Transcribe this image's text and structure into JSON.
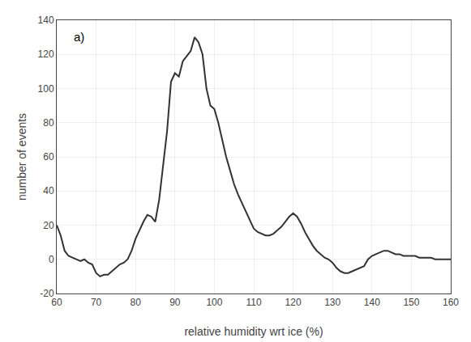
{
  "chart_data": {
    "type": "line",
    "x": [
      60,
      61,
      62,
      63,
      64,
      65,
      66,
      67,
      68,
      69,
      70,
      71,
      72,
      73,
      74,
      75,
      76,
      77,
      78,
      79,
      80,
      81,
      82,
      83,
      84,
      85,
      86,
      87,
      88,
      89,
      90,
      91,
      92,
      93,
      94,
      95,
      96,
      97,
      98,
      99,
      100,
      101,
      102,
      103,
      104,
      105,
      106,
      107,
      108,
      109,
      110,
      111,
      112,
      113,
      114,
      115,
      116,
      117,
      118,
      119,
      120,
      121,
      122,
      123,
      124,
      125,
      126,
      127,
      128,
      129,
      130,
      131,
      132,
      133,
      134,
      135,
      136,
      137,
      138,
      139,
      140,
      141,
      142,
      143,
      144,
      145,
      146,
      147,
      148,
      149,
      150,
      151,
      152,
      153,
      154,
      155,
      156,
      157,
      158,
      159,
      160
    ],
    "values": [
      20,
      14,
      5,
      2,
      1,
      0,
      -1,
      0,
      -2,
      -3,
      -8,
      -10,
      -9,
      -9,
      -7,
      -5,
      -3,
      -2,
      0,
      5,
      12,
      17,
      22,
      26,
      25,
      22,
      35,
      55,
      75,
      104,
      109,
      107,
      116,
      119,
      122,
      130,
      127,
      120,
      100,
      90,
      88,
      80,
      70,
      60,
      52,
      44,
      38,
      33,
      28,
      23,
      18,
      16,
      15,
      14,
      14,
      15,
      17,
      19,
      22,
      25,
      27,
      25,
      21,
      16,
      12,
      8,
      5,
      3,
      1,
      0,
      -2,
      -5,
      -7,
      -8,
      -8,
      -7,
      -6,
      -5,
      -4,
      0,
      2,
      3,
      4,
      5,
      5,
      4,
      3,
      3,
      2,
      2,
      2,
      2,
      1,
      1,
      1,
      1,
      0,
      0,
      0,
      0,
      0
    ],
    "color": "#333333",
    "xlabel": "relative humidity wrt ice (%)",
    "ylabel": "number of events",
    "annotation": "a)",
    "xlim": [
      60,
      160
    ],
    "ylim": [
      -20,
      140
    ],
    "xticks": [
      60,
      70,
      80,
      90,
      100,
      110,
      120,
      130,
      140,
      150,
      160
    ],
    "yticks": [
      -20,
      0,
      20,
      40,
      60,
      80,
      100,
      120,
      140
    ],
    "grid": true
  }
}
